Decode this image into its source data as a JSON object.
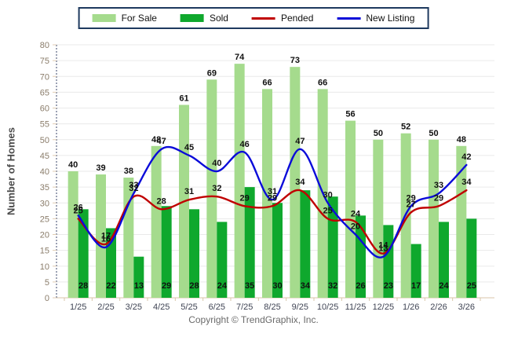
{
  "legend": {
    "items": [
      {
        "label": "For Sale",
        "type": "bar",
        "color": "#A5DB8D"
      },
      {
        "label": "Sold",
        "type": "bar",
        "color": "#0FA82D"
      },
      {
        "label": "Pended",
        "type": "line",
        "color": "#C00000"
      },
      {
        "label": "New Listing",
        "type": "line",
        "color": "#0B0BD9"
      }
    ]
  },
  "y_axis": {
    "title": "Number of Homes",
    "min": 0,
    "max": 80,
    "step": 5
  },
  "footer": {
    "copyright": "Copyright © TrendGraphix, Inc."
  },
  "chart_data": {
    "type": "bar",
    "title": "",
    "xlabel": "",
    "ylabel": "Number of Homes",
    "ylim": [
      0,
      80
    ],
    "grid": true,
    "legend_position": "top-center",
    "categories": [
      "1/25",
      "2/25",
      "3/25",
      "4/25",
      "5/25",
      "6/25",
      "7/25",
      "8/25",
      "9/25",
      "10/25",
      "11/25",
      "12/25",
      "1/26",
      "2/26",
      "3/26"
    ],
    "series": [
      {
        "name": "For Sale",
        "type": "bar",
        "color": "#A5DB8D",
        "values": [
          40,
          39,
          38,
          48,
          61,
          69,
          74,
          66,
          73,
          66,
          56,
          50,
          52,
          50,
          48
        ]
      },
      {
        "name": "Sold",
        "type": "bar",
        "color": "#0FA82D",
        "values": [
          28,
          22,
          13,
          29,
          28,
          24,
          35,
          30,
          34,
          32,
          26,
          23,
          17,
          24,
          25
        ]
      },
      {
        "name": "Pended",
        "type": "line",
        "color": "#C00000",
        "values": [
          25,
          17,
          32,
          28,
          31,
          32,
          29,
          29,
          34,
          25,
          24,
          14,
          27,
          29,
          34
        ]
      },
      {
        "name": "New Listing",
        "type": "line",
        "color": "#0B0BD9",
        "values": [
          26,
          16,
          33,
          47,
          45,
          40,
          46,
          31,
          47,
          30,
          20,
          13,
          29,
          33,
          42
        ]
      }
    ]
  }
}
